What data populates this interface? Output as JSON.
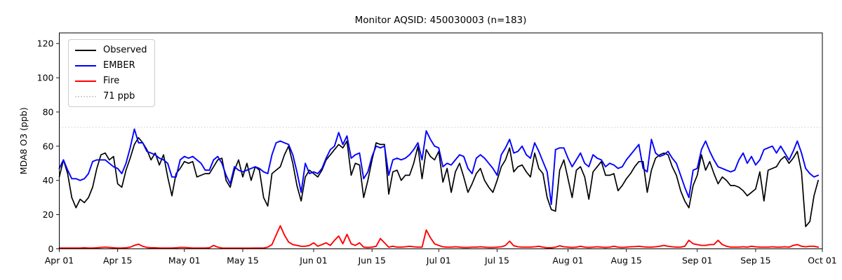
{
  "figure": {
    "title": "Monitor AQSID: 450030003 (n=183)",
    "y_axis_label": "MDA8 O3 (ppb)",
    "legend_entries": [
      "Observed",
      "EMBER",
      "Fire",
      "71 ppb"
    ]
  },
  "chart_data": {
    "type": "line",
    "title": "Monitor AQSID: 450030003 (n=183)",
    "xlabel": "",
    "ylabel": "MDA8 O3 (ppb)",
    "ylim": [
      0,
      126
    ],
    "grid": false,
    "legend_position": "upper left",
    "x_start_date": "Apr 01",
    "x_end_date": "Oct 01",
    "n_points": 183,
    "y_ticks": [
      0,
      20,
      40,
      60,
      80,
      100,
      120
    ],
    "x_ticks": [
      {
        "label": "Apr 01",
        "day": 0
      },
      {
        "label": "Apr 15",
        "day": 14
      },
      {
        "label": "May 01",
        "day": 30
      },
      {
        "label": "May 15",
        "day": 44
      },
      {
        "label": "Jun 01",
        "day": 61
      },
      {
        "label": "Jun 15",
        "day": 75
      },
      {
        "label": "Jul 01",
        "day": 91
      },
      {
        "label": "Jul 15",
        "day": 105
      },
      {
        "label": "Aug 01",
        "day": 122
      },
      {
        "label": "Aug 15",
        "day": 136
      },
      {
        "label": "Sep 01",
        "day": 153
      },
      {
        "label": "Sep 15",
        "day": 167
      },
      {
        "label": "Oct 01",
        "day": 183
      }
    ],
    "threshold": {
      "label": "71 ppb",
      "value": 71,
      "color": "#d3d3d3",
      "linestyle": "dotted"
    },
    "series": [
      {
        "name": "Observed",
        "color": "#000000",
        "values": [
          42,
          52,
          44,
          30,
          24,
          29,
          27,
          30,
          36,
          47,
          55,
          56,
          52,
          54,
          38,
          36,
          46,
          53,
          61,
          65,
          62,
          58,
          52,
          56,
          49,
          55,
          42,
          31,
          44,
          47,
          51,
          50,
          51,
          42,
          43,
          44,
          44,
          48,
          52,
          53,
          40,
          36,
          46,
          52,
          42,
          50,
          40,
          48,
          46,
          30,
          25,
          44,
          46,
          48,
          55,
          60,
          50,
          37,
          28,
          42,
          46,
          44,
          42,
          46,
          52,
          55,
          58,
          61,
          59,
          63,
          43,
          50,
          49,
          30,
          40,
          52,
          62,
          61,
          61,
          32,
          45,
          46,
          40,
          43,
          43,
          50,
          60,
          41,
          58,
          54,
          52,
          57,
          39,
          47,
          33,
          45,
          50,
          42,
          33,
          38,
          44,
          47,
          40,
          36,
          33,
          40,
          48,
          52,
          59,
          45,
          48,
          49,
          45,
          42,
          56,
          47,
          44,
          30,
          23,
          22,
          46,
          52,
          41,
          30,
          46,
          48,
          42,
          29,
          45,
          48,
          51,
          43,
          43,
          44,
          34,
          37,
          41,
          44,
          48,
          51,
          51,
          33,
          46,
          53,
          55,
          56,
          55,
          48,
          43,
          34,
          28,
          24,
          37,
          43,
          55,
          46,
          51,
          44,
          38,
          42,
          40,
          37,
          37,
          36,
          34,
          31,
          33,
          35,
          45,
          28,
          46,
          47,
          48,
          52,
          54,
          50,
          53,
          57,
          45,
          13,
          16,
          31,
          40
        ]
      },
      {
        "name": "EMBER",
        "color": "#0000ff",
        "values": [
          47,
          52,
          46,
          41,
          41,
          40,
          41,
          44,
          51,
          52,
          52,
          52,
          50,
          48,
          47,
          44,
          50,
          59,
          70,
          62,
          62,
          57,
          56,
          55,
          53,
          52,
          50,
          42,
          42,
          52,
          54,
          53,
          54,
          52,
          50,
          46,
          46,
          52,
          54,
          50,
          43,
          38,
          48,
          46,
          45,
          46,
          47,
          48,
          47,
          45,
          44,
          55,
          62,
          63,
          62,
          61,
          55,
          45,
          33,
          50,
          44,
          45,
          44,
          47,
          53,
          58,
          60,
          68,
          61,
          66,
          53,
          55,
          56,
          41,
          45,
          54,
          60,
          59,
          60,
          43,
          52,
          53,
          52,
          53,
          55,
          58,
          62,
          52,
          69,
          64,
          60,
          59,
          48,
          50,
          49,
          52,
          55,
          54,
          47,
          44,
          53,
          55,
          53,
          50,
          47,
          43,
          55,
          59,
          64,
          56,
          57,
          60,
          55,
          53,
          62,
          57,
          51,
          45,
          26,
          58,
          59,
          59,
          53,
          48,
          52,
          56,
          50,
          48,
          55,
          53,
          52,
          48,
          50,
          49,
          47,
          48,
          52,
          55,
          58,
          61,
          47,
          45,
          64,
          56,
          54,
          55,
          57,
          53,
          50,
          43,
          36,
          30,
          46,
          47,
          58,
          63,
          57,
          52,
          48,
          47,
          46,
          45,
          46,
          52,
          56,
          50,
          54,
          49,
          52,
          58,
          59,
          60,
          56,
          60,
          56,
          52,
          57,
          63,
          56,
          47,
          44,
          42,
          43
        ]
      },
      {
        "name": "Fire",
        "color": "#ff0000",
        "values": [
          0.5,
          0.5,
          0.5,
          0.5,
          0.5,
          0.5,
          0.6,
          0.5,
          0.5,
          0.6,
          0.8,
          1,
          0.8,
          0.6,
          0.5,
          0.5,
          0.6,
          1,
          2,
          2.7,
          1.5,
          0.8,
          0.6,
          0.6,
          0.5,
          0.5,
          0.5,
          0.5,
          0.6,
          0.8,
          0.8,
          0.6,
          0.5,
          0.5,
          0.5,
          0.5,
          0.6,
          2,
          1,
          0.5,
          0.4,
          0.4,
          0.4,
          0.4,
          0.4,
          0.4,
          0.4,
          0.5,
          0.5,
          0.5,
          1,
          2.5,
          8,
          13.5,
          8,
          4,
          2.5,
          2,
          1.5,
          1.5,
          2,
          3.5,
          1.5,
          2.5,
          3.5,
          2,
          5,
          7.5,
          3,
          8.5,
          3,
          2,
          3.5,
          1,
          0.8,
          1,
          1.5,
          6,
          3.5,
          1,
          1.5,
          1,
          1,
          1.2,
          1.5,
          1.2,
          1,
          1,
          11,
          6.5,
          3,
          2,
          1.2,
          1,
          1,
          1.2,
          1,
          0.8,
          0.8,
          1,
          1,
          1.2,
          1,
          0.8,
          0.8,
          1,
          1.2,
          2,
          4.5,
          1.8,
          1.2,
          1,
          1,
          1,
          1.2,
          1.5,
          1,
          0.6,
          0.6,
          1,
          1.8,
          1.2,
          1,
          0.8,
          1,
          1.5,
          1,
          0.8,
          1,
          1.2,
          1,
          0.8,
          1,
          1.5,
          1,
          0.8,
          1,
          1.2,
          1.3,
          1.5,
          1.2,
          1,
          1,
          1.2,
          1.5,
          2,
          1.5,
          1.2,
          1,
          1,
          1.5,
          5,
          3,
          2.5,
          2,
          2,
          2.5,
          2.5,
          5,
          2.5,
          1.5,
          1,
          1,
          1,
          1.2,
          1,
          1.5,
          1.2,
          1,
          1,
          1,
          1.2,
          1,
          1,
          1.2,
          1,
          2,
          2.5,
          1.5,
          1.2,
          1.5,
          1.5,
          1
        ]
      }
    ]
  }
}
